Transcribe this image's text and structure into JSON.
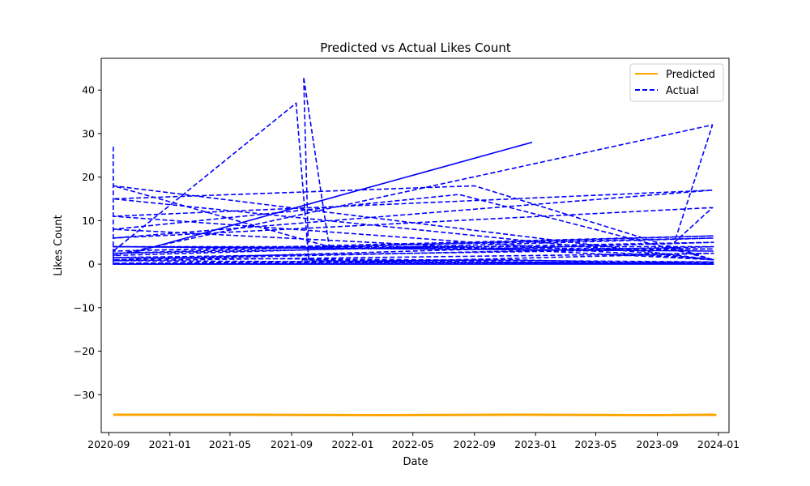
{
  "chart_data": {
    "type": "line",
    "title": "Predicted vs Actual Likes Count",
    "xlabel": "Date",
    "ylabel": "Likes Count",
    "x_scale": "date",
    "xlim": [
      "2020-08-17",
      "2024-01-22"
    ],
    "ylim": [
      -38.7,
      47.3
    ],
    "x_ticks": [
      {
        "value": "2020-09-01",
        "label": "2020-09"
      },
      {
        "value": "2021-01-01",
        "label": "2021-01"
      },
      {
        "value": "2021-05-01",
        "label": "2021-05"
      },
      {
        "value": "2021-09-01",
        "label": "2021-09"
      },
      {
        "value": "2022-01-01",
        "label": "2022-01"
      },
      {
        "value": "2022-05-01",
        "label": "2022-05"
      },
      {
        "value": "2022-09-01",
        "label": "2022-09"
      },
      {
        "value": "2023-01-01",
        "label": "2023-01"
      },
      {
        "value": "2023-05-01",
        "label": "2023-05"
      },
      {
        "value": "2023-09-01",
        "label": "2023-09"
      },
      {
        "value": "2024-01-01",
        "label": "2024-01"
      }
    ],
    "y_ticks": [
      -30,
      -20,
      -10,
      0,
      10,
      20,
      30,
      40
    ],
    "grid": false,
    "legend": {
      "position": "top-right",
      "entries": [
        {
          "name": "Predicted",
          "color": "#ffa500",
          "style": "solid"
        },
        {
          "name": "Actual",
          "color": "#0000ff",
          "style": "dashed"
        }
      ]
    },
    "series": [
      {
        "name": "Predicted",
        "color": "#ffa500",
        "style": "solid",
        "x": [
          "2020-09-10",
          "2021-06-01",
          "2022-03-01",
          "2022-12-01",
          "2023-09-01",
          "2023-12-20",
          "2023-12-28"
        ],
        "y": [
          -34.6,
          -34.6,
          -34.7,
          -34.6,
          -34.7,
          -34.6,
          -34.7
        ]
      },
      {
        "name": "Actual",
        "color": "#0000ff",
        "style": "dashed",
        "x": [
          "2020-09-10",
          "2020-09-10",
          "2020-09-10",
          "2021-09-10",
          "2021-10-05",
          "2021-09-25",
          "2021-11-15",
          "2020-09-10",
          "2023-12-22",
          "2020-09-10",
          "2022-09-01",
          "2023-12-22",
          "2020-09-10",
          "2022-08-01",
          "2023-12-22",
          "2020-09-10",
          "2023-12-20",
          "2020-09-10",
          "2023-12-20",
          "2023-10-05",
          "2023-12-20",
          "2020-09-10",
          "2023-12-22",
          "2020-09-10",
          "2023-12-22",
          "2020-09-10",
          "2023-12-22",
          "2020-09-10",
          "2023-12-22",
          "2020-09-10",
          "2023-12-22",
          "2020-09-10",
          "2023-12-22",
          "2020-09-10",
          "2022-11-10",
          "2023-12-22",
          "2021-09-20",
          "2022-02-01",
          "2023-12-22",
          "2020-09-10",
          "2023-12-22",
          "2020-09-10",
          "2023-12-22"
        ],
        "y": [
          27,
          0,
          3,
          37,
          1,
          43,
          4,
          18,
          1,
          15,
          18,
          1,
          8,
          16,
          1,
          11,
          17,
          6,
          13,
          5,
          32,
          2,
          6,
          3,
          6.5,
          2.5,
          5,
          1,
          4,
          4,
          3.5,
          1.5,
          0.5,
          0.2,
          1,
          0,
          1,
          0.5,
          2.5,
          0.8,
          0.1,
          0,
          0.3
        ]
      },
      {
        "name": "Actual",
        "color": "#0000ff",
        "style": "solid",
        "x": [
          "2020-10-15",
          "2022-12-25"
        ],
        "y": [
          2.5,
          28
        ]
      },
      {
        "name": "Actual",
        "color": "#0000ff",
        "style": "solid",
        "x": [
          "2020-09-10",
          "2023-12-22"
        ],
        "y": [
          4,
          3
        ]
      },
      {
        "name": "Actual",
        "color": "#0000ff",
        "style": "solid",
        "x": [
          "2020-09-10",
          "2023-12-22"
        ],
        "y": [
          0,
          0
        ]
      }
    ]
  }
}
